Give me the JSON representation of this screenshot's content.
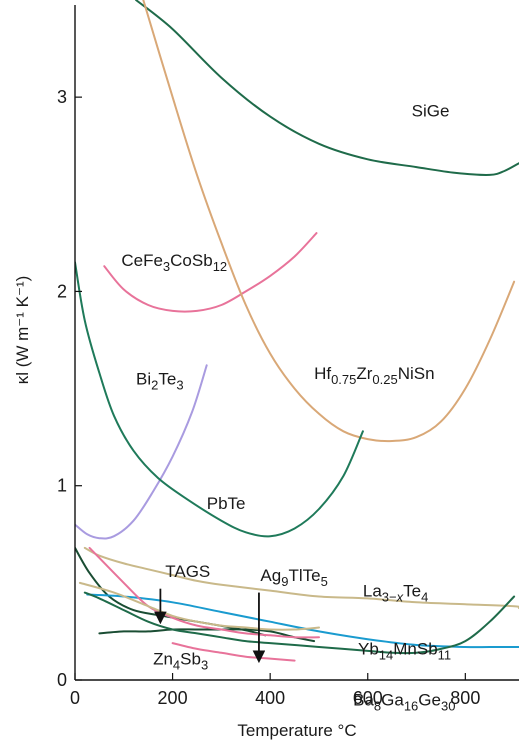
{
  "chart_data": {
    "type": "line",
    "xlabel": "Temperature °C",
    "ylabel": "κl (W m⁻¹ K⁻¹)",
    "xlim": [
      0,
      910
    ],
    "ylim": [
      0,
      3.5
    ],
    "xticks": [
      0,
      200,
      400,
      600,
      800
    ],
    "yticks": [
      0,
      1,
      2,
      3
    ],
    "grid": false,
    "legend": "none",
    "series": [
      {
        "name": "SiGe",
        "color": "#1f6b4a",
        "points": [
          [
            125,
            3.5
          ],
          [
            200,
            3.35
          ],
          [
            300,
            3.1
          ],
          [
            400,
            2.9
          ],
          [
            500,
            2.76
          ],
          [
            600,
            2.68
          ],
          [
            700,
            2.64
          ],
          [
            780,
            2.61
          ],
          [
            850,
            2.6
          ],
          [
            880,
            2.62
          ],
          [
            910,
            2.66
          ]
        ],
        "label_at": [
          690,
          2.9
        ]
      },
      {
        "name": "CeFe3CoSb12",
        "color": "#e8739a",
        "points": [
          [
            60,
            2.13
          ],
          [
            100,
            2.01
          ],
          [
            150,
            1.93
          ],
          [
            200,
            1.9
          ],
          [
            250,
            1.9
          ],
          [
            300,
            1.93
          ],
          [
            350,
            2.0
          ],
          [
            400,
            2.08
          ],
          [
            450,
            2.18
          ],
          [
            495,
            2.3
          ]
        ],
        "label_at": [
          95,
          2.13
        ]
      },
      {
        "name": "Hf0.75Zr0.25NiSn",
        "color": "#d9a877",
        "points": [
          [
            140,
            3.5
          ],
          [
            200,
            3.0
          ],
          [
            250,
            2.6
          ],
          [
            300,
            2.25
          ],
          [
            350,
            1.93
          ],
          [
            400,
            1.68
          ],
          [
            450,
            1.5
          ],
          [
            500,
            1.37
          ],
          [
            550,
            1.28
          ],
          [
            600,
            1.24
          ],
          [
            650,
            1.23
          ],
          [
            700,
            1.25
          ],
          [
            750,
            1.33
          ],
          [
            800,
            1.5
          ],
          [
            850,
            1.75
          ],
          [
            900,
            2.05
          ]
        ],
        "label_at": [
          490,
          1.55
        ]
      },
      {
        "name": "Bi2Te3",
        "color": "#a99be0",
        "points": [
          [
            0,
            0.8
          ],
          [
            25,
            0.75
          ],
          [
            50,
            0.73
          ],
          [
            80,
            0.74
          ],
          [
            120,
            0.82
          ],
          [
            160,
            0.97
          ],
          [
            200,
            1.15
          ],
          [
            240,
            1.38
          ],
          [
            270,
            1.62
          ]
        ],
        "label_at": [
          125,
          1.52
        ]
      },
      {
        "name": "PbTe",
        "color": "#1f7a5a",
        "points": [
          [
            0,
            2.15
          ],
          [
            20,
            1.85
          ],
          [
            50,
            1.58
          ],
          [
            80,
            1.36
          ],
          [
            120,
            1.18
          ],
          [
            170,
            1.04
          ],
          [
            230,
            0.93
          ],
          [
            300,
            0.82
          ],
          [
            350,
            0.76
          ],
          [
            400,
            0.74
          ],
          [
            450,
            0.78
          ],
          [
            500,
            0.88
          ],
          [
            550,
            1.05
          ],
          [
            590,
            1.28
          ]
        ],
        "label_at": [
          270,
          0.88
        ]
      },
      {
        "name": "TAGS",
        "color": "#1a4d33",
        "points": [
          [
            0,
            0.68
          ],
          [
            30,
            0.55
          ],
          [
            70,
            0.43
          ],
          [
            120,
            0.36
          ],
          [
            180,
            0.33
          ],
          [
            250,
            0.3
          ],
          [
            320,
            0.27
          ],
          [
            360,
            0.25
          ],
          [
            390,
            0.23
          ]
        ],
        "label_at": [
          185,
          0.53
        ]
      },
      {
        "name": "Ag9TlTe5",
        "color": "#1a4d33",
        "points": [
          [
            50,
            0.24
          ],
          [
            100,
            0.25
          ],
          [
            150,
            0.25
          ],
          [
            200,
            0.26
          ],
          [
            250,
            0.26
          ],
          [
            300,
            0.26
          ],
          [
            350,
            0.26
          ],
          [
            400,
            0.25
          ],
          [
            450,
            0.22
          ],
          [
            490,
            0.2
          ]
        ],
        "label_at": [
          380,
          0.51
        ]
      },
      {
        "name": "Zn4Sb3",
        "color": "#e8739a",
        "points": [
          [
            200,
            0.19
          ],
          [
            250,
            0.16
          ],
          [
            300,
            0.14
          ],
          [
            350,
            0.12
          ],
          [
            400,
            0.11
          ],
          [
            450,
            0.1
          ]
        ],
        "label_at": [
          160,
          0.08
        ]
      },
      {
        "name": "La3-xTe4",
        "color": "#c9b98a",
        "points": [
          [
            20,
            0.68
          ],
          [
            50,
            0.64
          ],
          [
            100,
            0.6
          ],
          [
            150,
            0.57
          ],
          [
            200,
            0.54
          ],
          [
            250,
            0.51
          ],
          [
            300,
            0.49
          ],
          [
            400,
            0.46
          ],
          [
            500,
            0.43
          ],
          [
            600,
            0.42
          ],
          [
            700,
            0.4
          ],
          [
            800,
            0.39
          ],
          [
            900,
            0.38
          ],
          [
            910,
            0.37
          ]
        ],
        "label_at": [
          590,
          0.43
        ]
      },
      {
        "name": "Yb14MnSb11",
        "color": "#1a9bcf",
        "points": [
          [
            25,
            0.44
          ],
          [
            100,
            0.43
          ],
          [
            200,
            0.4
          ],
          [
            300,
            0.35
          ],
          [
            400,
            0.3
          ],
          [
            500,
            0.25
          ],
          [
            600,
            0.21
          ],
          [
            700,
            0.18
          ],
          [
            800,
            0.17
          ],
          [
            850,
            0.17
          ],
          [
            910,
            0.17
          ]
        ],
        "label_at": [
          580,
          0.13
        ]
      },
      {
        "name": "Ba8Ga16Ge30",
        "color": "#1f6b4a",
        "points": [
          [
            20,
            0.45
          ],
          [
            50,
            0.42
          ],
          [
            100,
            0.36
          ],
          [
            150,
            0.3
          ],
          [
            200,
            0.26
          ],
          [
            250,
            0.24
          ],
          [
            300,
            0.22
          ],
          [
            350,
            0.2
          ],
          [
            400,
            0.19
          ],
          [
            450,
            0.18
          ],
          [
            500,
            0.17
          ],
          [
            550,
            0.16
          ],
          [
            600,
            0.15
          ],
          [
            650,
            0.14
          ],
          [
            700,
            0.14
          ],
          [
            750,
            0.16
          ],
          [
            800,
            0.2
          ],
          [
            850,
            0.3
          ],
          [
            900,
            0.43
          ]
        ],
        "label_at": [
          570,
          -0.13
        ]
      },
      {
        "name": "",
        "color": "#e8739a",
        "points": [
          [
            30,
            0.68
          ],
          [
            100,
            0.5
          ],
          [
            150,
            0.38
          ],
          [
            200,
            0.32
          ],
          [
            250,
            0.28
          ],
          [
            300,
            0.26
          ],
          [
            350,
            0.24
          ],
          [
            400,
            0.23
          ],
          [
            450,
            0.22
          ],
          [
            500,
            0.22
          ]
        ]
      },
      {
        "name": "",
        "color": "#c9b98a",
        "points": [
          [
            10,
            0.5
          ],
          [
            80,
            0.45
          ],
          [
            150,
            0.38
          ],
          [
            200,
            0.33
          ],
          [
            250,
            0.3
          ],
          [
            300,
            0.28
          ],
          [
            350,
            0.27
          ],
          [
            400,
            0.26
          ],
          [
            450,
            0.26
          ],
          [
            500,
            0.27
          ]
        ]
      }
    ],
    "annotations": [
      {
        "type": "arrow",
        "from": [
          175,
          0.47
        ],
        "to": [
          175,
          0.3
        ]
      },
      {
        "type": "arrow",
        "from": [
          377,
          0.45
        ],
        "to": [
          377,
          0.1
        ]
      }
    ]
  }
}
